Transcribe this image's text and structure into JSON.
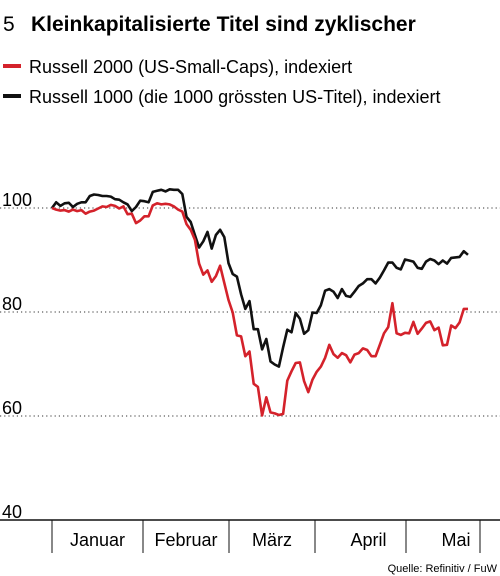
{
  "figure_number": "5",
  "title": "Kleinkapitalisierte Titel sind zyklischer",
  "source": "Quelle: Refinitiv / FuW",
  "colors": {
    "russell2000": "#d4222b",
    "russell1000": "#111111",
    "grid": "#333333"
  },
  "chart_data": {
    "type": "line",
    "title": "Kleinkapitalisierte Titel sind zyklischer",
    "xlabel": "",
    "ylabel": "",
    "x_ticks": [
      "Januar",
      "Februar",
      "März",
      "April",
      "Mai"
    ],
    "y_ticks": [
      40,
      60,
      80,
      100
    ],
    "ylim": [
      40,
      118
    ],
    "grid": "horizontal dotted",
    "legend_position": "top-left",
    "series": [
      {
        "name": "Russell 2000 (US-Small-Caps), indexiert",
        "color": "#d4222b",
        "values": [
          100,
          99.7,
          99.5,
          99.6,
          99.3,
          99.7,
          99.4,
          99.6,
          98.9,
          99.3,
          99.5,
          99.9,
          100.3,
          100.2,
          100.6,
          100.4,
          99.9,
          100.3,
          98.8,
          98.9,
          97.1,
          97.6,
          98.4,
          98.4,
          100.5,
          100.9,
          100.7,
          100.8,
          100.7,
          100.3,
          99.7,
          99.3,
          96.9,
          95.8,
          93.9,
          89.3,
          87.2,
          88,
          85.8,
          86.9,
          88.9,
          85.6,
          82.3,
          79.9,
          75.5,
          75.3,
          71.5,
          72.4,
          66.2,
          65.6,
          60.1,
          63.6,
          60.7,
          60.5,
          60.2,
          60.4,
          66.8,
          68.6,
          70.2,
          70.3,
          66.7,
          64.6,
          67,
          68.5,
          69.5,
          71.2,
          73.7,
          71.9,
          71.2,
          72.1,
          71.7,
          70.3,
          71.8,
          72.1,
          73,
          72.7,
          71.5,
          71.5,
          73.7,
          75.9,
          77.1,
          81.7,
          75.9,
          75.6,
          76,
          75.9,
          78.1,
          75.8,
          76.8,
          77.9,
          78.2,
          76.5,
          77,
          73.6,
          73.7,
          77.4,
          76.9,
          78,
          80.6,
          80.6
        ]
      },
      {
        "name": "Russell 1000 (die 1000 grössten US-Titel), indexiert",
        "color": "#111111",
        "values": [
          100,
          101.1,
          100.4,
          100.9,
          101,
          100.2,
          100.8,
          101.1,
          101.1,
          102.3,
          102.6,
          102.5,
          102.3,
          102.3,
          102.2,
          101.7,
          101.6,
          101.1,
          100.7,
          99.4,
          100.2,
          101.4,
          101.3,
          101.1,
          103.1,
          103.3,
          103.5,
          103.2,
          103.6,
          103.5,
          103.5,
          102.7,
          98.3,
          97.3,
          94.8,
          92.4,
          93.6,
          95.4,
          92.2,
          94.8,
          95.8,
          94.4,
          89.4,
          87.3,
          86.8,
          83.4,
          80.6,
          82.1,
          76.7,
          76.7,
          72.8,
          74.8,
          70.5,
          69.9,
          69.5,
          73.2,
          76.6,
          76.1,
          79.8,
          78.7,
          75.8,
          76.5,
          79.9,
          79.8,
          81.3,
          84.1,
          84.4,
          83.9,
          82.7,
          84.4,
          83.1,
          82.9,
          83.9,
          85,
          85.5,
          86.3,
          86.3,
          85.5,
          86.6,
          88,
          89.5,
          89.5,
          88.5,
          88.2,
          90.1,
          89.9,
          89.7,
          88.5,
          88.3,
          89.7,
          90.2,
          89.9,
          89.2,
          89.9,
          89.3,
          90.4,
          90.5,
          90.6,
          91.7,
          91
        ]
      }
    ]
  }
}
